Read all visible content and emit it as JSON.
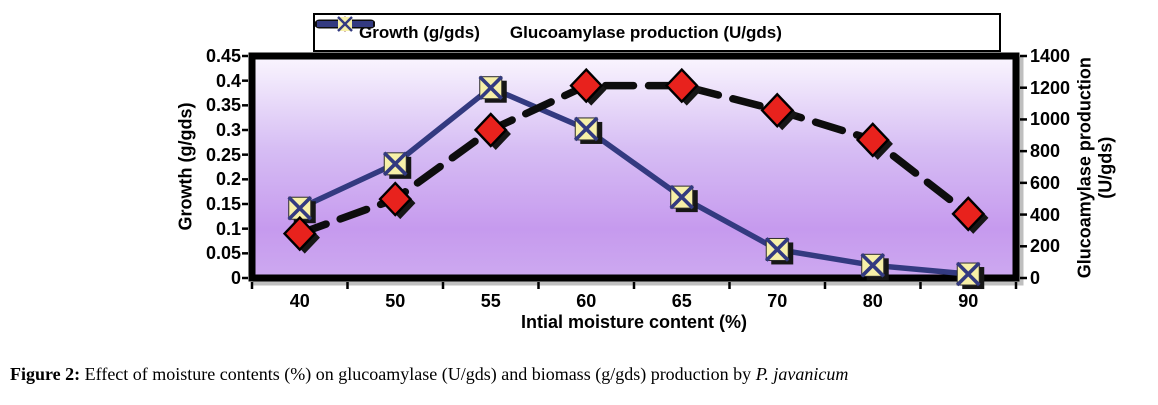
{
  "figure": {
    "caption_prefix": "Figure 2:",
    "caption_body": " Effect of moisture contents (%) on glucoamylase (U/gds) and biomass (g/gds) production by ",
    "caption_species": "P. javanicum"
  },
  "chart_data": {
    "type": "line",
    "title": "",
    "xlabel": "Intial moisture content (%)",
    "ylabel_left": "Growth (g/gds)",
    "ylabel_right": "Glucoamylase production (U/gds)",
    "ylabel_right_lines": {
      "0": "Glucoamylase production",
      "1": "(U/gds)"
    },
    "categories": [
      "40",
      "50",
      "55",
      "60",
      "65",
      "70",
      "80",
      "90"
    ],
    "series": [
      {
        "name": "Growth (g/gds)",
        "axis": "left",
        "values": [
          0.09,
          0.16,
          0.3,
          0.39,
          0.39,
          0.34,
          0.28,
          0.13
        ],
        "color": "#0d0d0d",
        "line_style": "dashed",
        "marker": "diamond",
        "marker_color": "#e8221d"
      },
      {
        "name": "Glucoamylase production (U/gds)",
        "axis": "right",
        "values": [
          440,
          720,
          1200,
          940,
          510,
          180,
          80,
          25
        ],
        "color": "#333a80",
        "line_style": "solid",
        "marker": "x-square",
        "marker_color": "#f7f0a8"
      }
    ],
    "left_axis": {
      "min": 0,
      "max": 0.45,
      "step": 0.05,
      "ticks": [
        "0",
        "0.05",
        "0.1",
        "0.15",
        "0.2",
        "0.25",
        "0.3",
        "0.35",
        "0.4",
        "0.45"
      ]
    },
    "right_axis": {
      "min": 0,
      "max": 1400,
      "step": 200,
      "ticks": [
        "0",
        "200",
        "400",
        "600",
        "800",
        "1000",
        "1200",
        "1400"
      ]
    },
    "legend_position": "top",
    "grid": false,
    "plot_bg_top": "#faf6fe",
    "plot_bg_mid": "#c69aee",
    "plot_bg_bottom": "#cda9f0"
  }
}
